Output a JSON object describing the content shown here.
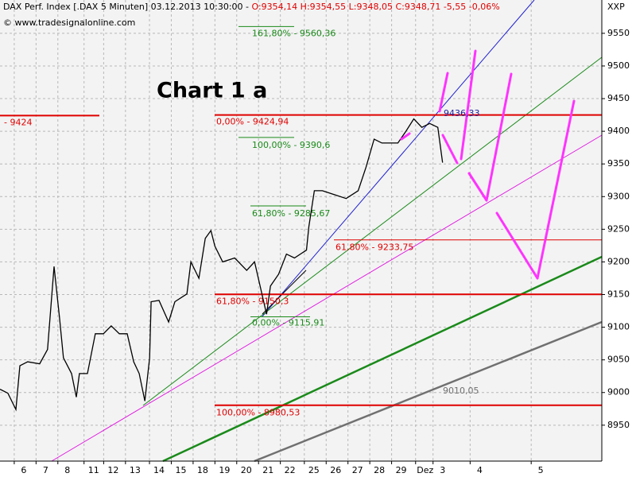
{
  "chart_data": {
    "type": "line",
    "title": "Chart 1 a",
    "header": {
      "instrument": "DAX Perf. Index [.DAX  5 Minuten] 03.12.2013 10:30:00 - ",
      "quote": "O:9354,14 H:9354,55 L:9348,05 C:9348,71 -5,55 -0,06%"
    },
    "copyright": "© www.tradesignalonline.com",
    "corner_label": "XXP",
    "xlim": [
      -1.09,
      26.5
    ],
    "ylim": [
      8895,
      9601
    ],
    "yticks": [
      8950,
      9000,
      9050,
      9100,
      9150,
      9200,
      9250,
      9300,
      9350,
      9400,
      9450,
      9500,
      9550
    ],
    "xticks": [
      {
        "value": 0,
        "label": "6"
      },
      {
        "value": 1,
        "label": "7"
      },
      {
        "value": 2,
        "label": "8"
      },
      {
        "value": 3.2,
        "label": "11"
      },
      {
        "value": 4.1,
        "label": "12"
      },
      {
        "value": 5.1,
        "label": "13"
      },
      {
        "value": 6.2,
        "label": "14"
      },
      {
        "value": 7.2,
        "label": "15"
      },
      {
        "value": 8.2,
        "label": "18"
      },
      {
        "value": 9.2,
        "label": "19"
      },
      {
        "value": 10.2,
        "label": "20"
      },
      {
        "value": 11.2,
        "label": "21"
      },
      {
        "value": 12.2,
        "label": "22"
      },
      {
        "value": 13.3,
        "label": "25"
      },
      {
        "value": 14.3,
        "label": "26"
      },
      {
        "value": 15.3,
        "label": "27"
      },
      {
        "value": 16.3,
        "label": "28"
      },
      {
        "value": 17.3,
        "label": "29"
      },
      {
        "value": 18.4,
        "label": "Dez"
      },
      {
        "value": 19.2,
        "label": "3"
      },
      {
        "value": 20.9,
        "label": "4"
      },
      {
        "value": 23.7,
        "label": "5"
      }
    ],
    "grid": true,
    "series": [
      {
        "name": "DAX Perf. Index",
        "color": "#000000",
        "x": [
          -1.09,
          -0.73,
          -0.36,
          -0.18,
          0.18,
          0.73,
          1.09,
          1.39,
          1.64,
          1.82,
          2.19,
          2.41,
          2.55,
          2.92,
          3.28,
          3.65,
          4.01,
          4.38,
          4.74,
          5.04,
          5.29,
          5.55,
          5.77,
          5.84,
          6.2,
          6.64,
          6.93,
          7.48,
          7.66,
          8.03,
          8.32,
          8.58,
          8.76,
          9.12,
          9.67,
          10.22,
          10.58,
          11.13,
          11.31,
          11.68,
          12.04,
          12.41,
          12.96,
          13.07,
          13.32,
          13.69,
          14.23,
          14.78,
          15.33,
          15.69,
          16.06,
          16.42,
          17.15,
          17.52,
          17.88,
          18.25,
          18.61,
          18.98,
          19.2
        ],
        "values": [
          9005,
          8999,
          8974,
          9041,
          9047,
          9044,
          9066,
          9193,
          9114,
          9053,
          9029,
          8993,
          9029,
          9029,
          9090,
          9090,
          9102,
          9090,
          9090,
          9047,
          9029,
          8987,
          9053,
          9139,
          9141,
          9108,
          9139,
          9151,
          9200,
          9175,
          9236,
          9248,
          9224,
          9200,
          9206,
          9187,
          9200,
          9120,
          9163,
          9181,
          9212,
          9206,
          9218,
          9254,
          9309,
          9309,
          9303,
          9297,
          9309,
          9345,
          9388,
          9382,
          9382,
          9400,
          9419,
          9406,
          9412,
          9406,
          9352
        ]
      }
    ],
    "levels": [
      {
        "label": "- 9424",
        "value": 9424,
        "color": "#e00000"
      },
      {
        "label": "0,00% - 9424,94",
        "value": 9424.94,
        "color": "#e00000"
      },
      {
        "label": "61,80% - 9233,75",
        "value": 9233.75,
        "color": "#e00000"
      },
      {
        "label": "61,80% - 9150,3",
        "value": 9150.3,
        "color": "#e00000"
      },
      {
        "label": "100,00% - 8980,53",
        "value": 8980.53,
        "color": "#e00000"
      },
      {
        "label": "161,80% - 9560,36",
        "value": 9560.36,
        "color": "#1a8a1a"
      },
      {
        "label": "100,00% - 9390,6",
        "value": 9390.6,
        "color": "#1a8a1a"
      },
      {
        "label": "61,80% - 9285,67",
        "value": 9285.67,
        "color": "#1a8a1a"
      },
      {
        "label": "0,00% - 9115,91",
        "value": 9115.91,
        "color": "#1a8a1a"
      }
    ],
    "trend_labels": [
      "9436,33",
      "9010,05"
    ]
  }
}
